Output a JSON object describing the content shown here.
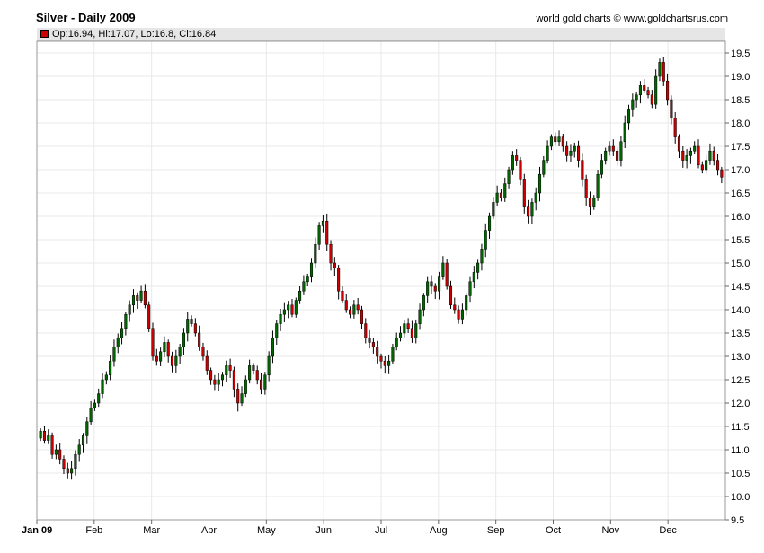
{
  "header": {
    "title": "Silver - Daily 2009",
    "source": "world gold charts © www.goldchartsrus.com",
    "ohlc_legend": "Op:16.94, Hi:17.07, Lo:16.8, Cl:16.84"
  },
  "colors": {
    "up": "#006600",
    "down": "#cc0000",
    "wick": "#000000",
    "grid": "#e8e8e8"
  },
  "chart_data": {
    "type": "candlestick",
    "title": "Silver - Daily 2009",
    "y_axis_side": "right",
    "ylim": [
      9.5,
      19.75
    ],
    "yticks": [
      9.5,
      10.0,
      10.5,
      11.0,
      11.5,
      12.0,
      12.5,
      13.0,
      13.5,
      14.0,
      14.5,
      15.0,
      15.5,
      16.0,
      16.5,
      17.0,
      17.5,
      18.0,
      18.5,
      19.0,
      19.5
    ],
    "month_labels": [
      "Jan 09",
      "Feb",
      "Mar",
      "Apr",
      "May",
      "Jun",
      "Jul",
      "Aug",
      "Sep",
      "Oct",
      "Nov",
      "Dec"
    ],
    "grid": true,
    "series": [
      {
        "name": "Silver",
        "approx_daily_close": [
          11.4,
          11.2,
          11.3,
          10.9,
          11.0,
          10.8,
          10.6,
          10.5,
          10.6,
          10.9,
          11.1,
          11.3,
          11.6,
          11.9,
          12.0,
          12.2,
          12.5,
          12.6,
          12.9,
          13.2,
          13.4,
          13.6,
          13.9,
          14.1,
          14.3,
          14.2,
          14.4,
          14.1,
          13.6,
          13.0,
          12.9,
          13.1,
          13.3,
          13.0,
          12.8,
          13.0,
          13.2,
          13.5,
          13.8,
          13.7,
          13.5,
          13.2,
          13.0,
          12.7,
          12.5,
          12.4,
          12.5,
          12.6,
          12.8,
          12.7,
          12.3,
          12.0,
          12.2,
          12.5,
          12.8,
          12.7,
          12.5,
          12.3,
          12.6,
          13.0,
          13.4,
          13.7,
          13.9,
          14.0,
          14.1,
          13.9,
          14.2,
          14.4,
          14.6,
          14.7,
          15.0,
          15.4,
          15.8,
          15.9,
          15.4,
          15.0,
          14.9,
          14.4,
          14.2,
          14.0,
          13.9,
          14.1,
          14.0,
          13.7,
          13.4,
          13.3,
          13.2,
          13.0,
          12.9,
          12.8,
          12.9,
          13.2,
          13.4,
          13.5,
          13.7,
          13.6,
          13.4,
          13.7,
          14.0,
          14.3,
          14.6,
          14.5,
          14.4,
          14.7,
          15.0,
          14.5,
          14.1,
          14.0,
          13.8,
          14.0,
          14.3,
          14.6,
          14.8,
          15.0,
          15.3,
          15.7,
          16.0,
          16.3,
          16.5,
          16.4,
          16.7,
          17.0,
          17.3,
          17.2,
          16.8,
          16.2,
          16.0,
          16.3,
          16.5,
          16.9,
          17.2,
          17.5,
          17.7,
          17.6,
          17.7,
          17.5,
          17.3,
          17.4,
          17.5,
          17.2,
          16.8,
          16.4,
          16.2,
          16.4,
          16.9,
          17.2,
          17.4,
          17.5,
          17.4,
          17.2,
          17.6,
          18.0,
          18.3,
          18.5,
          18.6,
          18.8,
          18.7,
          18.6,
          18.4,
          19.0,
          19.3,
          18.9,
          18.5,
          18.1,
          17.7,
          17.4,
          17.2,
          17.3,
          17.4,
          17.5,
          17.1,
          17.0,
          17.2,
          17.4,
          17.2,
          17.0,
          16.84
        ]
      }
    ],
    "last_bar": {
      "open": 16.94,
      "high": 17.07,
      "low": 16.8,
      "close": 16.84
    }
  }
}
